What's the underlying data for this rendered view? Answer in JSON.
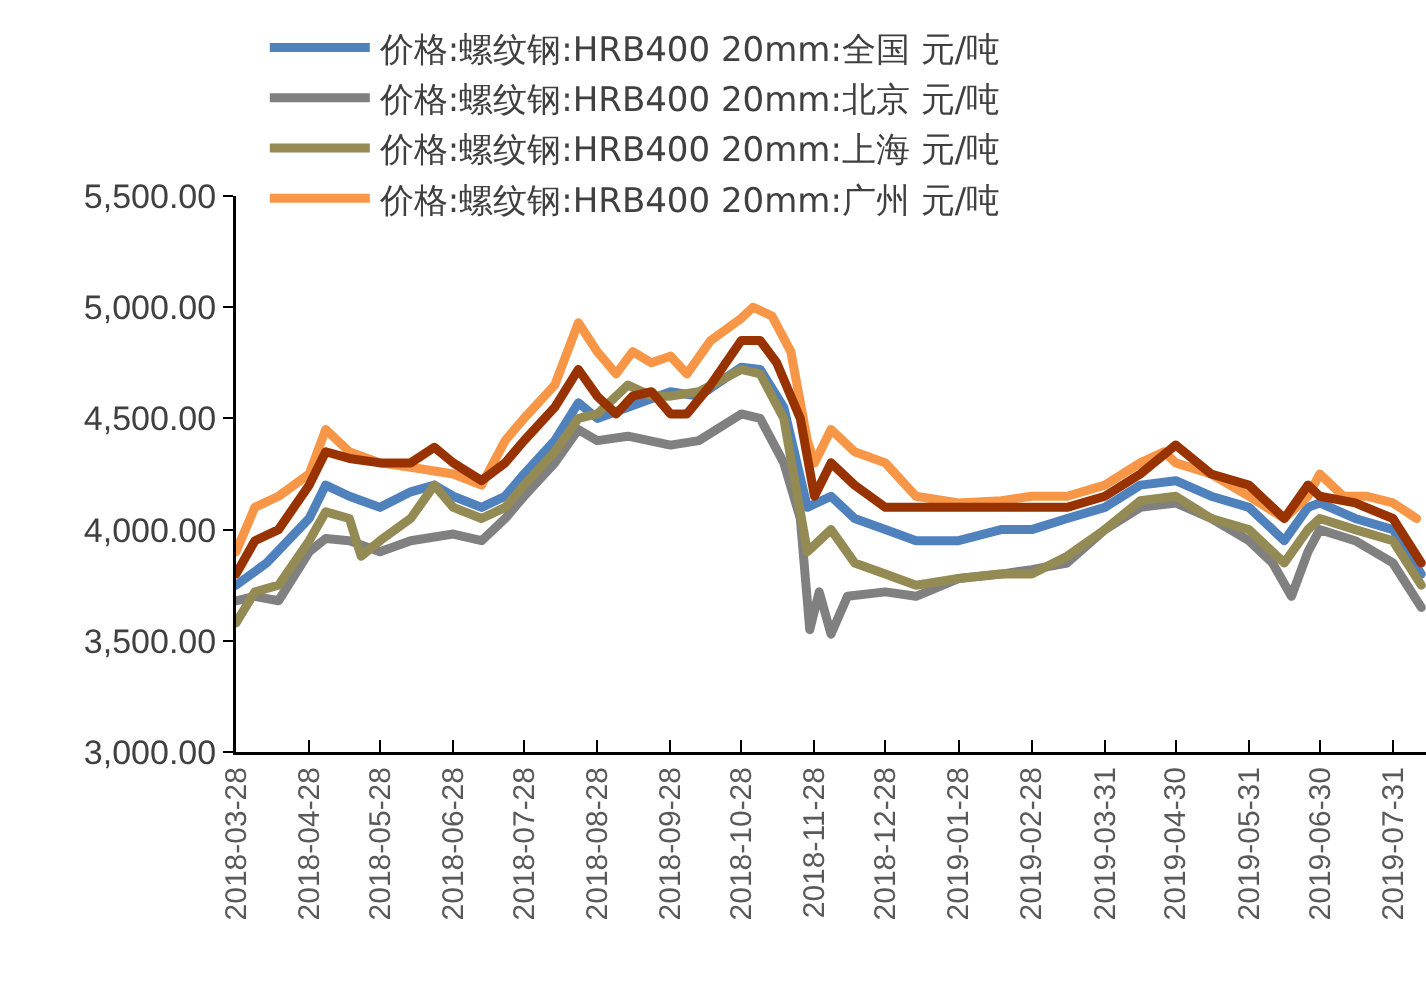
{
  "chart_data": {
    "type": "line",
    "xlim": [
      "2018-03-28",
      "2019-08-14"
    ],
    "xticks": [
      {
        "value": "2018-03-28",
        "label": "2018-03-28"
      },
      {
        "value": "2018-04-28",
        "label": "2018-04-28"
      },
      {
        "value": "2018-05-28",
        "label": "2018-05-28"
      },
      {
        "value": "2018-06-28",
        "label": "2018-06-28"
      },
      {
        "value": "2018-07-28",
        "label": "2018-07-28"
      },
      {
        "value": "2018-08-28",
        "label": "2018-08-28"
      },
      {
        "value": "2018-09-28",
        "label": "2018-09-28"
      },
      {
        "value": "2018-10-28",
        "label": "2018-10-28"
      },
      {
        "value": "2018-11-28",
        "label": "2018-11-28"
      },
      {
        "value": "2018-12-28",
        "label": "2018-12-28"
      },
      {
        "value": "2019-01-28",
        "label": "2019-01-28"
      },
      {
        "value": "2019-02-28",
        "label": "2019-02-28"
      },
      {
        "value": "2019-03-31",
        "label": "2019-03-31"
      },
      {
        "value": "2019-04-30",
        "label": "2019-04-30"
      },
      {
        "value": "2019-05-31",
        "label": "2019-05-31"
      },
      {
        "value": "2019-06-30",
        "label": "2019-06-30"
      },
      {
        "value": "2019-07-31",
        "label": "2019-07-31"
      }
    ],
    "ylim": [
      3000,
      5500
    ],
    "yticks": [
      {
        "value": 3000,
        "label": "3,000.00"
      },
      {
        "value": 3500,
        "label": "3,500.00"
      },
      {
        "value": 4000,
        "label": "4,000.00"
      },
      {
        "value": 4500,
        "label": "4,500.00"
      },
      {
        "value": 5000,
        "label": "5,000.00"
      },
      {
        "value": 5500,
        "label": "5,500.00"
      }
    ],
    "grid": false,
    "legend": "top left",
    "marker": "none",
    "line_style": "solid",
    "series": [
      {
        "name": "价格:螺纹钢:HRB400 20mm:全国 元/吨",
        "color": "#4f81bd",
        "x": [
          "2018-03-28",
          "2018-04-10",
          "2018-04-28",
          "2018-05-05",
          "2018-05-15",
          "2018-05-28",
          "2018-06-10",
          "2018-06-20",
          "2018-06-28",
          "2018-07-10",
          "2018-07-20",
          "2018-07-28",
          "2018-08-10",
          "2018-08-20",
          "2018-08-28",
          "2018-09-10",
          "2018-09-28",
          "2018-10-10",
          "2018-10-28",
          "2018-11-05",
          "2018-11-15",
          "2018-11-25",
          "2018-12-05",
          "2018-12-15",
          "2018-12-28",
          "2019-01-10",
          "2019-01-28",
          "2019-02-15",
          "2019-02-28",
          "2019-03-15",
          "2019-03-31",
          "2019-04-15",
          "2019-04-30",
          "2019-05-15",
          "2019-05-31",
          "2019-06-15",
          "2019-06-25",
          "2019-06-30",
          "2019-07-15",
          "2019-07-31",
          "2019-08-12"
        ],
        "values": [
          3750,
          3850,
          4050,
          4200,
          4150,
          4100,
          4170,
          4200,
          4150,
          4100,
          4150,
          4250,
          4400,
          4570,
          4500,
          4550,
          4620,
          4600,
          4730,
          4720,
          4550,
          4100,
          4150,
          4050,
          4000,
          3950,
          3950,
          4000,
          4000,
          4050,
          4100,
          4200,
          4220,
          4150,
          4100,
          3950,
          4100,
          4120,
          4050,
          4000,
          3800
        ]
      },
      {
        "name": "价格:螺纹钢:HRB400 20mm:北京 元/吨",
        "color": "#808080",
        "x": [
          "2018-03-28",
          "2018-04-05",
          "2018-04-15",
          "2018-04-28",
          "2018-05-05",
          "2018-05-15",
          "2018-05-28",
          "2018-06-10",
          "2018-06-28",
          "2018-07-10",
          "2018-07-20",
          "2018-07-28",
          "2018-08-10",
          "2018-08-20",
          "2018-08-28",
          "2018-09-10",
          "2018-09-28",
          "2018-10-10",
          "2018-10-28",
          "2018-11-05",
          "2018-11-15",
          "2018-11-22",
          "2018-11-26",
          "2018-11-30",
          "2018-12-05",
          "2018-12-12",
          "2018-12-28",
          "2019-01-10",
          "2019-01-28",
          "2019-02-15",
          "2019-02-28",
          "2019-03-15",
          "2019-03-31",
          "2019-04-15",
          "2019-04-30",
          "2019-05-15",
          "2019-05-31",
          "2019-06-10",
          "2019-06-18",
          "2019-06-25",
          "2019-06-30",
          "2019-07-15",
          "2019-07-31",
          "2019-08-12"
        ],
        "values": [
          3680,
          3700,
          3680,
          3900,
          3960,
          3950,
          3900,
          3950,
          3980,
          3950,
          4050,
          4150,
          4300,
          4450,
          4400,
          4420,
          4380,
          4400,
          4520,
          4500,
          4300,
          4050,
          3550,
          3720,
          3530,
          3700,
          3720,
          3700,
          3780,
          3800,
          3820,
          3850,
          4000,
          4100,
          4120,
          4050,
          3950,
          3850,
          3700,
          3900,
          4000,
          3950,
          3850,
          3650
        ]
      },
      {
        "name": "价格:螺纹钢:HRB400 20mm:上海 元/吨",
        "color": "#948a54",
        "x": [
          "2018-03-28",
          "2018-04-05",
          "2018-04-15",
          "2018-04-28",
          "2018-05-05",
          "2018-05-15",
          "2018-05-20",
          "2018-05-28",
          "2018-06-10",
          "2018-06-20",
          "2018-06-28",
          "2018-07-10",
          "2018-07-20",
          "2018-07-28",
          "2018-08-10",
          "2018-08-20",
          "2018-08-28",
          "2018-09-10",
          "2018-09-20",
          "2018-09-28",
          "2018-10-10",
          "2018-10-28",
          "2018-11-05",
          "2018-11-15",
          "2018-11-25",
          "2018-12-05",
          "2018-12-15",
          "2018-12-28",
          "2019-01-10",
          "2019-01-28",
          "2019-02-15",
          "2019-02-28",
          "2019-03-15",
          "2019-03-31",
          "2019-04-15",
          "2019-04-30",
          "2019-05-15",
          "2019-05-31",
          "2019-06-15",
          "2019-06-25",
          "2019-06-30",
          "2019-07-15",
          "2019-07-31",
          "2019-08-12"
        ],
        "values": [
          3580,
          3720,
          3750,
          3950,
          4080,
          4050,
          3880,
          3950,
          4050,
          4200,
          4100,
          4050,
          4100,
          4200,
          4350,
          4500,
          4520,
          4650,
          4600,
          4600,
          4620,
          4720,
          4700,
          4500,
          3900,
          4000,
          3850,
          3800,
          3750,
          3780,
          3800,
          3800,
          3880,
          4000,
          4130,
          4150,
          4050,
          4000,
          3850,
          4000,
          4050,
          4000,
          3950,
          3750
        ]
      },
      {
        "name": "价格:螺纹钢:HRB400 20mm:广州 元/吨",
        "color": "#f79646",
        "x": [
          "2018-03-28",
          "2018-04-05",
          "2018-04-15",
          "2018-04-28",
          "2018-05-05",
          "2018-05-15",
          "2018-05-28",
          "2018-06-10",
          "2018-06-28",
          "2018-07-10",
          "2018-07-20",
          "2018-07-28",
          "2018-08-10",
          "2018-08-20",
          "2018-08-28",
          "2018-09-05",
          "2018-09-12",
          "2018-09-20",
          "2018-09-28",
          "2018-10-05",
          "2018-10-15",
          "2018-10-28",
          "2018-11-02",
          "2018-11-10",
          "2018-11-18",
          "2018-11-25",
          "2018-11-28",
          "2018-12-05",
          "2018-12-15",
          "2018-12-28",
          "2019-01-10",
          "2019-01-28",
          "2019-02-15",
          "2019-02-28",
          "2019-03-15",
          "2019-03-31",
          "2019-04-15",
          "2019-04-25",
          "2019-04-30",
          "2019-05-15",
          "2019-05-31",
          "2019-06-15",
          "2019-06-25",
          "2019-06-30",
          "2019-07-10",
          "2019-07-20",
          "2019-07-31",
          "2019-08-10"
        ],
        "values": [
          3900,
          4100,
          4150,
          4250,
          4450,
          4350,
          4300,
          4280,
          4250,
          4200,
          4400,
          4500,
          4650,
          4930,
          4800,
          4700,
          4800,
          4750,
          4780,
          4700,
          4850,
          4950,
          5000,
          4960,
          4800,
          4400,
          4300,
          4450,
          4350,
          4300,
          4150,
          4120,
          4130,
          4150,
          4150,
          4200,
          4300,
          4350,
          4300,
          4250,
          4150,
          4050,
          4150,
          4250,
          4150,
          4150,
          4120,
          4050
        ]
      },
      {
        "color": "#983300",
        "x": [
          "2018-03-28",
          "2018-04-05",
          "2018-04-15",
          "2018-04-28",
          "2018-05-05",
          "2018-05-15",
          "2018-05-28",
          "2018-06-10",
          "2018-06-20",
          "2018-06-28",
          "2018-07-10",
          "2018-07-20",
          "2018-07-28",
          "2018-08-10",
          "2018-08-20",
          "2018-08-28",
          "2018-09-05",
          "2018-09-12",
          "2018-09-20",
          "2018-09-28",
          "2018-10-05",
          "2018-10-15",
          "2018-10-28",
          "2018-11-05",
          "2018-11-12",
          "2018-11-22",
          "2018-11-28",
          "2018-12-05",
          "2018-12-15",
          "2018-12-28",
          "2019-01-28",
          "2019-02-28",
          "2019-03-15",
          "2019-03-31",
          "2019-04-15",
          "2019-04-30",
          "2019-05-15",
          "2019-05-31",
          "2019-06-15",
          "2019-06-25",
          "2019-06-30",
          "2019-07-15",
          "2019-07-31",
          "2019-08-12"
        ],
        "values": [
          3800,
          3950,
          4000,
          4200,
          4350,
          4320,
          4300,
          4300,
          4370,
          4300,
          4220,
          4300,
          4400,
          4550,
          4720,
          4600,
          4520,
          4600,
          4620,
          4520,
          4520,
          4650,
          4850,
          4850,
          4750,
          4500,
          4150,
          4300,
          4200,
          4100,
          4100,
          4100,
          4100,
          4150,
          4250,
          4380,
          4250,
          4200,
          4050,
          4200,
          4150,
          4120,
          4050,
          3850
        ]
      }
    ]
  }
}
